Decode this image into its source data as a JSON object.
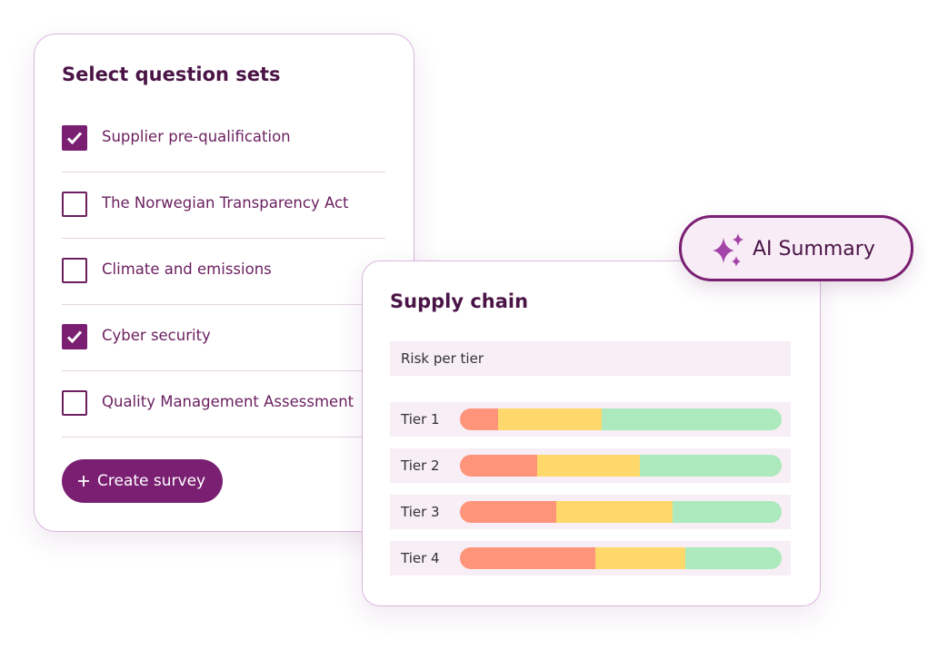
{
  "question_sets": {
    "title": "Select question sets",
    "items": [
      {
        "label": "Supplier pre-qualification",
        "checked": true
      },
      {
        "label": "The Norwegian Transparency Act",
        "checked": false
      },
      {
        "label": "Climate and emissions",
        "checked": false
      },
      {
        "label": "Cyber security",
        "checked": true
      },
      {
        "label": "Quality Management Assessment",
        "checked": false
      }
    ],
    "button": "Create survey"
  },
  "ai_badge": "AI Summary",
  "supply_chain": {
    "title": "Supply chain",
    "subtitle": "Risk per tier",
    "segment_colors": [
      "#fe957b",
      "#fed86a",
      "#ace9bd"
    ],
    "tiers": [
      {
        "label": "Tier 1",
        "segments": [
          12,
          32,
          56
        ]
      },
      {
        "label": "Tier 2",
        "segments": [
          24,
          32,
          44
        ]
      },
      {
        "label": "Tier 3",
        "segments": [
          30,
          36,
          34
        ]
      },
      {
        "label": "Tier 4",
        "segments": [
          42,
          28,
          30
        ]
      }
    ]
  }
}
